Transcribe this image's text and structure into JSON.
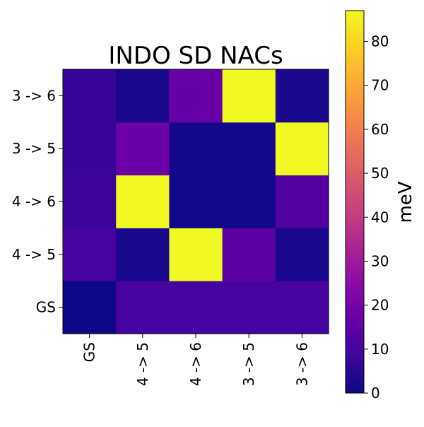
{
  "chart_data": {
    "type": "heatmap",
    "title": "INDO SD NACs",
    "x_categories": [
      "GS",
      "4 -> 5",
      "4 -> 6",
      "3 -> 5",
      "3 -> 6"
    ],
    "y_categories": [
      "GS",
      "4 -> 5",
      "4 -> 6",
      "3 -> 5",
      "3 -> 6"
    ],
    "values": [
      [
        0,
        10,
        10,
        10,
        10
      ],
      [
        10,
        2,
        87,
        14,
        2
      ],
      [
        8,
        87,
        1,
        1,
        12
      ],
      [
        7,
        18,
        1,
        1,
        87
      ],
      [
        7,
        2,
        17,
        87,
        2
      ]
    ],
    "value_order_note_rows": "rows listed bottom-to-top matching y_categories",
    "colorbar": {
      "label": "meV",
      "ticks": [
        0,
        10,
        20,
        30,
        40,
        50,
        60,
        70,
        80
      ],
      "range": [
        0,
        87
      ],
      "colormap": "plasma"
    }
  }
}
